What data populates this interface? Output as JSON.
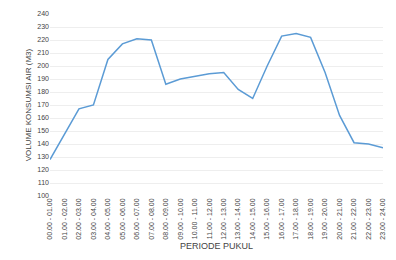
{
  "chart_data": {
    "type": "line",
    "xlabel": "PERIODE PUKUL",
    "ylabel": "VOLUME KONSUMSI AIR (M3)",
    "categories": [
      "00.00 - 01.00",
      "01.00 - 02.00",
      "02.00 - 03.00",
      "03.00 - 04.00",
      "04.00 - 05.00",
      "05.00 - 06.00",
      "06.00 - 07.00",
      "07.00 - 08.00",
      "08.00 - 09.00",
      "09.00 - 10.00",
      "10.00 - 11.00",
      "11.00 - 12.00",
      "12.00 - 13.00",
      "13.00 - 14.00",
      "14.00 - 15.00",
      "15.00 - 16.00",
      "16.00 - 17.00",
      "17.00 - 18.00",
      "18.00 - 19.00",
      "19.00 - 20.00",
      "20.00 - 21.00",
      "21.00 - 22.00",
      "22.00 - 23.00",
      "23.00 - 24.00"
    ],
    "values": [
      128,
      148,
      167,
      170,
      205,
      217,
      221,
      220,
      186,
      190,
      192,
      194,
      195,
      182,
      175,
      200,
      223,
      225,
      222,
      195,
      162,
      141,
      140,
      137
    ],
    "color": "#5B9BD5",
    "ylim": [
      100,
      240
    ],
    "yticks": [
      100,
      110,
      120,
      130,
      140,
      150,
      160,
      170,
      180,
      190,
      200,
      210,
      220,
      230,
      240
    ],
    "grid": "y"
  }
}
